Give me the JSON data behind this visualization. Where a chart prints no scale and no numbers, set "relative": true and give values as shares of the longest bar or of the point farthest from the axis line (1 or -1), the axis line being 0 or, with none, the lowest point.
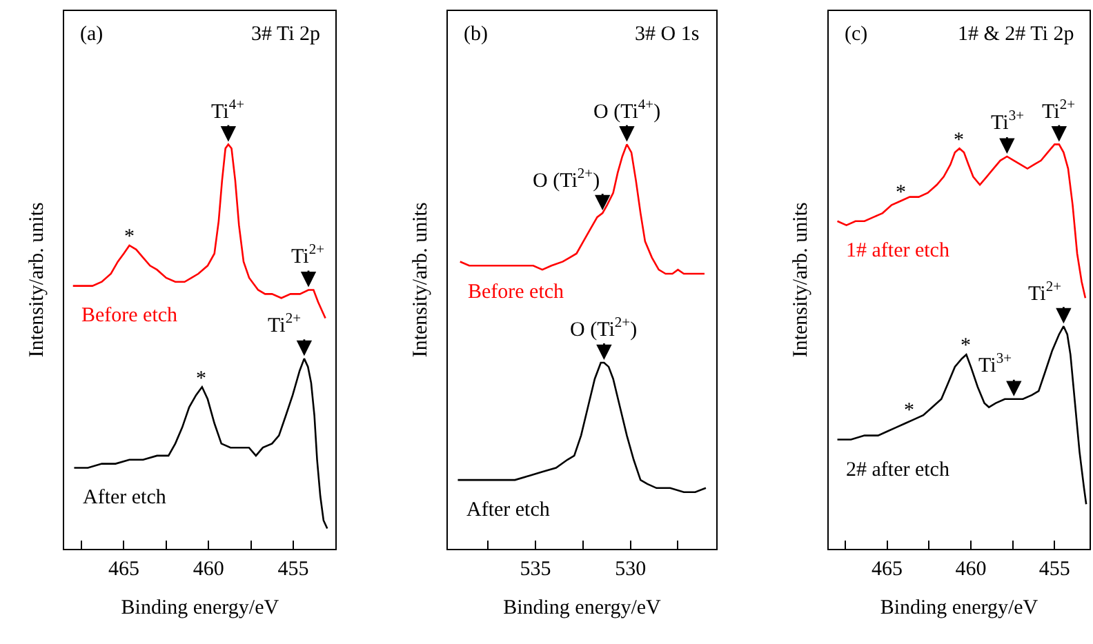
{
  "chart_data": [
    {
      "type": "line",
      "relative": true,
      "xlim": [
        468.5,
        452.5
      ],
      "xticks": [
        {
          "value": 467.5,
          "label": null
        },
        465,
        {
          "value": 462.5,
          "label": null
        },
        460,
        {
          "value": 457.5,
          "label": null
        },
        455
      ],
      "tick_labels": "x",
      "xlabel": "Binding energy/eV",
      "ylabel": "Intensity/arb. units",
      "annotations": [
        "(a)",
        "3# Ti 2p",
        {
          "text": "Ti$^{4+}$",
          "x": 458.83,
          "y": 1.0
        },
        {
          "text": "*",
          "x": 464.67,
          "y": 0.75
        },
        {
          "text": "Ti$^{2+}$",
          "x": 454.1,
          "y": 0.64
        },
        {
          "text": "*",
          "x": 460.38,
          "y": 0.4
        },
        {
          "text": "Ti$^{2+}$",
          "x": 454.35,
          "y": 0.47
        }
      ],
      "series": [
        {
          "name": "Before etch",
          "color": "#ff0000",
          "x": [
            468.0,
            467.4,
            466.85,
            466.3,
            465.76,
            465.35,
            465.0,
            464.67,
            464.27,
            463.86,
            463.45,
            463.04,
            462.5,
            461.96,
            461.41,
            461.0,
            460.6,
            460.05,
            459.65,
            459.4,
            459.2,
            459.0,
            458.83,
            458.64,
            458.42,
            458.2,
            457.93,
            457.6,
            457.07,
            456.66,
            456.25,
            455.7,
            455.16,
            454.6,
            454.1,
            453.8,
            453.53,
            453.1
          ],
          "values": [
            0.65,
            0.65,
            0.65,
            0.66,
            0.68,
            0.71,
            0.73,
            0.75,
            0.74,
            0.72,
            0.7,
            0.69,
            0.67,
            0.66,
            0.66,
            0.67,
            0.68,
            0.7,
            0.73,
            0.81,
            0.91,
            0.99,
            1.0,
            0.99,
            0.91,
            0.8,
            0.71,
            0.67,
            0.64,
            0.63,
            0.63,
            0.62,
            0.63,
            0.63,
            0.64,
            0.64,
            0.61,
            0.57
          ]
        },
        {
          "name": "After etch",
          "color": "#000000",
          "x": [
            467.93,
            467.12,
            466.3,
            465.49,
            464.67,
            463.86,
            463.04,
            462.36,
            461.96,
            461.55,
            461.14,
            460.73,
            460.38,
            460.05,
            459.65,
            459.24,
            458.7,
            458.15,
            457.61,
            457.2,
            456.79,
            456.25,
            455.84,
            455.43,
            455.03,
            454.62,
            454.35,
            454.13,
            453.94,
            453.75,
            453.59,
            453.4,
            453.21,
            452.99
          ],
          "values": [
            0.2,
            0.2,
            0.21,
            0.21,
            0.22,
            0.22,
            0.23,
            0.23,
            0.26,
            0.3,
            0.35,
            0.38,
            0.4,
            0.37,
            0.31,
            0.26,
            0.25,
            0.25,
            0.25,
            0.23,
            0.25,
            0.26,
            0.28,
            0.33,
            0.38,
            0.44,
            0.47,
            0.45,
            0.41,
            0.33,
            0.22,
            0.13,
            0.07,
            0.05
          ]
        }
      ]
    },
    {
      "type": "line",
      "relative": true,
      "xlim": [
        539.6,
        525.5
      ],
      "xticks": [
        {
          "value": 537.5,
          "label": null
        },
        535,
        {
          "value": 532.5,
          "label": null
        },
        530,
        {
          "value": 527.5,
          "label": null
        }
      ],
      "tick_labels": "x",
      "xlabel": "Binding energy/eV",
      "ylabel": "Intensity/arb. units",
      "annotations": [
        "(b)",
        "3# O 1s",
        {
          "text": "O (Ti$^{4+}$)",
          "x": 530.19,
          "y": 1.0
        },
        {
          "text": "O (Ti$^{2+}$)",
          "x": 531.47,
          "y": 0.83
        },
        {
          "text": "O (Ti$^{2+}$)",
          "x": 531.39,
          "y": 0.46
        }
      ],
      "series": [
        {
          "name": "Before etch",
          "color": "#ff0000",
          "x": [
            538.97,
            538.49,
            538.0,
            537.52,
            537.04,
            536.56,
            536.08,
            535.6,
            535.12,
            534.64,
            534.16,
            533.56,
            533.2,
            532.84,
            532.48,
            532.12,
            531.75,
            531.47,
            531.23,
            530.91,
            530.67,
            530.43,
            530.19,
            529.95,
            529.71,
            529.47,
            529.23,
            528.87,
            528.51,
            528.15,
            527.79,
            527.5,
            527.19,
            526.71,
            526.1
          ],
          "values": [
            0.71,
            0.7,
            0.7,
            0.7,
            0.7,
            0.7,
            0.7,
            0.7,
            0.7,
            0.69,
            0.7,
            0.71,
            0.72,
            0.73,
            0.76,
            0.79,
            0.82,
            0.83,
            0.85,
            0.88,
            0.93,
            0.97,
            1.0,
            0.98,
            0.91,
            0.83,
            0.76,
            0.72,
            0.69,
            0.68,
            0.68,
            0.69,
            0.68,
            0.68,
            0.68
          ]
        },
        {
          "name": "After etch",
          "color": "#000000",
          "x": [
            539.09,
            538.25,
            537.52,
            536.8,
            536.08,
            535.36,
            534.64,
            533.92,
            533.32,
            532.96,
            532.6,
            532.24,
            531.88,
            531.56,
            531.39,
            531.15,
            530.91,
            530.55,
            530.19,
            529.83,
            529.47,
            529.11,
            528.63,
            527.91,
            527.19,
            526.59,
            526.03
          ],
          "values": [
            0.17,
            0.17,
            0.17,
            0.17,
            0.17,
            0.18,
            0.19,
            0.2,
            0.22,
            0.23,
            0.28,
            0.35,
            0.42,
            0.46,
            0.46,
            0.45,
            0.42,
            0.35,
            0.28,
            0.22,
            0.17,
            0.16,
            0.15,
            0.15,
            0.14,
            0.14,
            0.15
          ]
        }
      ]
    },
    {
      "type": "line",
      "relative": true,
      "xlim": [
        468.5,
        452.9
      ],
      "xticks": [
        {
          "value": 467.5,
          "label": null
        },
        465,
        {
          "value": 462.5,
          "label": null
        },
        460,
        {
          "value": 457.5,
          "label": null
        },
        455
      ],
      "tick_labels": "x",
      "xlabel": "Binding energy/eV",
      "ylabel": "Intensity/arb. units",
      "annotations": [
        "(c)",
        "1# & 2# Ti 2p",
        {
          "text": "*",
          "x": 464.19,
          "y": 0.86
        },
        {
          "text": "*",
          "x": 460.68,
          "y": 0.99
        },
        {
          "text": "Ti$^{3+}$",
          "x": 457.84,
          "y": 0.97
        },
        {
          "text": "Ti$^{2+}$",
          "x": 454.73,
          "y": 1.0
        },
        {
          "text": "*",
          "x": 463.65,
          "y": 0.32
        },
        {
          "text": "*",
          "x": 460.27,
          "y": 0.48
        },
        {
          "text": "Ti$^{3+}$",
          "x": 457.43,
          "y": 0.37
        },
        {
          "text": "Ti$^{2+}$",
          "x": 454.46,
          "y": 0.55
        }
      ],
      "series": [
        {
          "name": "1# after etch",
          "color": "#ff0000",
          "x": [
            467.97,
            467.43,
            466.89,
            466.35,
            465.81,
            465.27,
            464.73,
            464.19,
            463.65,
            463.11,
            462.57,
            462.03,
            461.62,
            461.22,
            460.95,
            460.68,
            460.41,
            460.14,
            459.86,
            459.46,
            459.05,
            458.65,
            458.24,
            457.84,
            457.43,
            457.03,
            456.62,
            456.22,
            455.81,
            455.41,
            455.0,
            454.73,
            454.46,
            454.19,
            453.92,
            453.65,
            453.38,
            453.16
          ],
          "values": [
            0.81,
            0.8,
            0.81,
            0.81,
            0.82,
            0.83,
            0.85,
            0.86,
            0.87,
            0.87,
            0.88,
            0.9,
            0.92,
            0.95,
            0.98,
            0.99,
            0.98,
            0.95,
            0.92,
            0.9,
            0.92,
            0.94,
            0.96,
            0.97,
            0.96,
            0.95,
            0.94,
            0.95,
            0.96,
            0.98,
            1.0,
            1.0,
            0.98,
            0.94,
            0.85,
            0.73,
            0.66,
            0.62
          ]
        },
        {
          "name": "2# after etch",
          "color": "#000000",
          "x": [
            467.97,
            467.16,
            466.35,
            465.54,
            465.0,
            464.46,
            463.92,
            463.38,
            462.84,
            462.3,
            461.76,
            461.35,
            460.95,
            460.54,
            460.27,
            460.0,
            459.59,
            459.19,
            458.92,
            458.51,
            457.97,
            457.43,
            456.89,
            456.35,
            455.95,
            455.54,
            455.14,
            454.73,
            454.46,
            454.24,
            454.05,
            453.78,
            453.51,
            453.24,
            453.11
          ],
          "values": [
            0.27,
            0.27,
            0.28,
            0.28,
            0.29,
            0.3,
            0.31,
            0.32,
            0.33,
            0.35,
            0.37,
            0.41,
            0.45,
            0.47,
            0.48,
            0.45,
            0.4,
            0.36,
            0.35,
            0.36,
            0.37,
            0.37,
            0.37,
            0.38,
            0.39,
            0.44,
            0.49,
            0.53,
            0.55,
            0.53,
            0.48,
            0.36,
            0.24,
            0.15,
            0.11
          ]
        }
      ]
    }
  ]
}
